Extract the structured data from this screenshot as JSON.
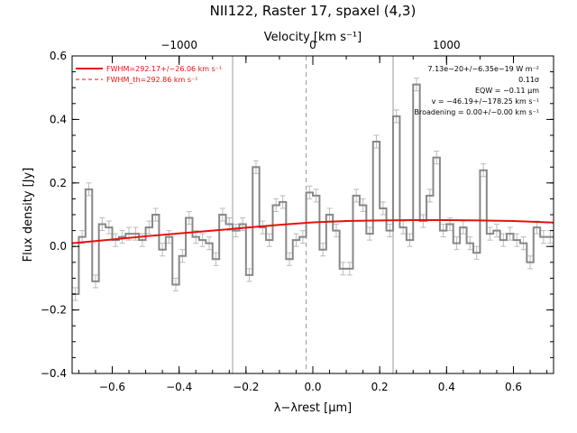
{
  "chart_data": {
    "type": "line",
    "title": "NII122, Raster 17, spaxel (4,3)",
    "xlabel": "λ−λrest [μm]",
    "ylabel": "Flux density [Jy]",
    "top_axis_label": "Velocity [km s⁻¹]",
    "xlim": [
      -0.72,
      0.72
    ],
    "ylim": [
      -0.4,
      0.6
    ],
    "xticks": [
      -0.6,
      -0.4,
      -0.2,
      0.0,
      0.2,
      0.4,
      0.6
    ],
    "xtick_labels": [
      "−0.6",
      "−0.4",
      "−0.2",
      "0.0",
      "0.2",
      "0.4",
      "0.6"
    ],
    "yticks": [
      -0.4,
      -0.2,
      0.0,
      0.2,
      0.4,
      0.6
    ],
    "ytick_labels": [
      "−0.4",
      "−0.2",
      "0.0",
      "0.2",
      "0.4",
      "0.6"
    ],
    "top_ticks_um": [
      -0.4,
      0.0,
      0.4
    ],
    "top_tick_labels": [
      "−1000",
      "0",
      "1000"
    ],
    "vlines": [
      {
        "x": -0.24,
        "style": "solid"
      },
      {
        "x": -0.02,
        "style": "dashed"
      },
      {
        "x": 0.24,
        "style": "solid"
      }
    ],
    "legend": [
      {
        "label": "FWHM=292.17+/−26.06 km s⁻¹",
        "style": "solid",
        "color": "#e8100c"
      },
      {
        "label": "FWHM_th=292.86 km s⁻¹",
        "style": "dashed",
        "color": "#e8100c"
      }
    ],
    "annotations": [
      "7.13e−20+/−6.35e−19 W m⁻²",
      "0.11σ",
      "EQW = −0.11 μm",
      "v = −46.19+/−178.25 km s⁻¹",
      "Broadening = 0.00+/−0.00 km s⁻¹"
    ],
    "series": [
      {
        "style": "histogram",
        "color": "#888888",
        "x": [
          -0.72,
          -0.7,
          -0.68,
          -0.66,
          -0.64,
          -0.62,
          -0.6,
          -0.58,
          -0.56,
          -0.54,
          -0.52,
          -0.5,
          -0.48,
          -0.46,
          -0.44,
          -0.42,
          -0.4,
          -0.38,
          -0.36,
          -0.34,
          -0.32,
          -0.3,
          -0.28,
          -0.26,
          -0.24,
          -0.22,
          -0.2,
          -0.18,
          -0.16,
          -0.14,
          -0.12,
          -0.1,
          -0.08,
          -0.06,
          -0.04,
          -0.02,
          0.0,
          0.02,
          0.04,
          0.06,
          0.08,
          0.1,
          0.12,
          0.14,
          0.16,
          0.18,
          0.2,
          0.22,
          0.24,
          0.26,
          0.28,
          0.3,
          0.32,
          0.34,
          0.36,
          0.38,
          0.4,
          0.42,
          0.44,
          0.46,
          0.48,
          0.5,
          0.52,
          0.54,
          0.56,
          0.58,
          0.6,
          0.62,
          0.64,
          0.66,
          0.68,
          0.7
        ],
        "y": [
          -0.15,
          0.03,
          0.18,
          -0.11,
          0.07,
          0.06,
          0.02,
          0.03,
          0.04,
          0.04,
          0.02,
          0.06,
          0.1,
          -0.01,
          0.03,
          -0.12,
          -0.03,
          0.09,
          0.03,
          0.02,
          0.01,
          -0.04,
          0.1,
          0.07,
          0.05,
          0.07,
          -0.09,
          0.25,
          0.06,
          0.02,
          0.13,
          0.14,
          -0.04,
          0.02,
          0.03,
          0.17,
          0.16,
          -0.01,
          0.1,
          0.05,
          -0.07,
          -0.07,
          0.16,
          0.13,
          0.04,
          0.33,
          0.12,
          0.05,
          0.41,
          0.06,
          0.02,
          0.51,
          0.08,
          0.16,
          0.28,
          0.05,
          0.07,
          0.01,
          0.06,
          0.01,
          -0.02,
          0.24,
          0.04,
          0.05,
          0.02,
          0.04,
          0.02,
          0.01,
          -0.05,
          0.06,
          0.03,
          0.03
        ],
        "errors": [
          0.02,
          0.02,
          0.02,
          0.02,
          0.02,
          0.02,
          0.02,
          0.02,
          0.02,
          0.02,
          0.02,
          0.02,
          0.02,
          0.02,
          0.02,
          0.02,
          0.02,
          0.02,
          0.02,
          0.02,
          0.02,
          0.02,
          0.02,
          0.02,
          0.02,
          0.02,
          0.02,
          0.02,
          0.02,
          0.02,
          0.02,
          0.02,
          0.02,
          0.02,
          0.02,
          0.02,
          0.02,
          0.02,
          0.02,
          0.02,
          0.02,
          0.02,
          0.02,
          0.02,
          0.02,
          0.02,
          0.02,
          0.02,
          0.02,
          0.02,
          0.02,
          0.02,
          0.02,
          0.02,
          0.02,
          0.02,
          0.02,
          0.02,
          0.02,
          0.02,
          0.02,
          0.02,
          0.02,
          0.02,
          0.02,
          0.02,
          0.02,
          0.02,
          0.02,
          0.02,
          0.02,
          0.02
        ]
      },
      {
        "style": "fit",
        "color": "#e8100c",
        "x": [
          -0.72,
          -0.6,
          -0.5,
          -0.4,
          -0.3,
          -0.2,
          -0.1,
          0.0,
          0.1,
          0.2,
          0.3,
          0.4,
          0.5,
          0.6,
          0.72
        ],
        "y": [
          0.01,
          0.022,
          0.032,
          0.041,
          0.05,
          0.059,
          0.068,
          0.076,
          0.08,
          0.082,
          0.083,
          0.083,
          0.082,
          0.08,
          0.075
        ]
      }
    ]
  }
}
